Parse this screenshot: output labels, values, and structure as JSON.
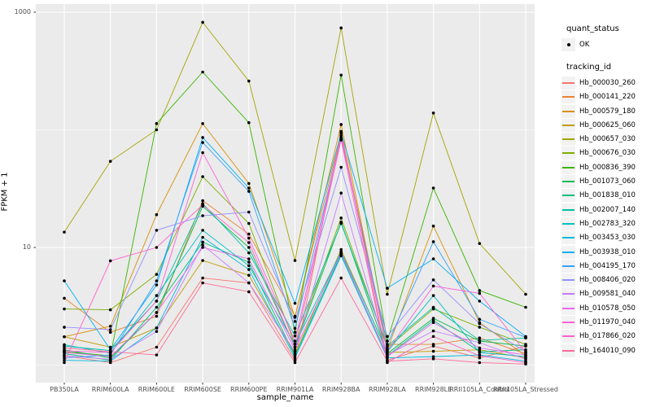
{
  "figure": {
    "y_axis": {
      "title": "FPKM + 1",
      "tick_labels": [
        "1000",
        "10"
      ],
      "tick_values": [
        1000,
        10
      ],
      "minor_grid_values": [
        100,
        1
      ]
    },
    "x_axis": {
      "title": "sample_name"
    },
    "legend": {
      "quant_status_title": "quant_status",
      "quant_status_items": [
        {
          "label": "OK",
          "symbol": "black-point"
        }
      ],
      "tracking_id_title": "tracking_id"
    },
    "colors": {
      "panel_bg": "#EBEBEB",
      "grid": "#FFFFFF",
      "legend_key_bg": "#F2F2F2",
      "tick_text": "#4D4D4D",
      "title_text": "#000000",
      "point": "#000000"
    }
  },
  "chart_data": {
    "type": "line",
    "x_type": "categorical",
    "y_scale": "log10",
    "ylim": [
      0.85,
      1200
    ],
    "xlabel": "sample_name",
    "ylabel": "FPKM + 1",
    "legend_position": "right",
    "grid": true,
    "y_major_breaks": [
      10,
      1000
    ],
    "y_minor_breaks": [
      1,
      100
    ],
    "point_marker": "black-dot",
    "categories": [
      "PB350LA",
      "RRIM600LA",
      "RRIM600LE",
      "RRIM600SE",
      "RRIM600PE",
      "RRIM901LA",
      "RRIM928BA",
      "RRIM928LA",
      "RRIM928LE",
      "RRII105LA_Control",
      "RRII105LA_Stressed"
    ],
    "series": [
      {
        "name": "Hb_000030_260",
        "color": "#F8766D",
        "values": [
          1.2,
          1.05,
          1.42,
          5.5,
          5.0,
          1.1,
          97,
          1.1,
          1.45,
          1.15,
          1.45
        ]
      },
      {
        "name": "Hb_000141_220",
        "color": "#EA8331",
        "values": [
          3.7,
          1.9,
          2.6,
          25,
          13,
          2.6,
          90,
          1.5,
          1.5,
          1.7,
          1.25
        ]
      },
      {
        "name": "Hb_000579_180",
        "color": "#D89000",
        "values": [
          1.74,
          2.14,
          19,
          113,
          35,
          2.55,
          111,
          1.35,
          15.2,
          2.3,
          1.2
        ]
      },
      {
        "name": "Hb_000625_060",
        "color": "#C09B00",
        "values": [
          1.74,
          1.42,
          2.07,
          7.75,
          5.8,
          1.24,
          9.6,
          1.28,
          1.31,
          1.35,
          1.15
        ]
      },
      {
        "name": "Hb_000657_030",
        "color": "#A3A500",
        "values": [
          13.5,
          54,
          100,
          820,
          260,
          7.75,
          735,
          4.0,
          139,
          10.8,
          4.0
        ]
      },
      {
        "name": "Hb_000676_030",
        "color": "#7CAE00",
        "values": [
          3.0,
          2.95,
          5.9,
          40,
          16,
          1.5,
          17.8,
          1.4,
          3.0,
          2.1,
          1.5
        ]
      },
      {
        "name": "Hb_000836_390",
        "color": "#39B600",
        "values": [
          1.3,
          1.2,
          113,
          310,
          115,
          1.9,
          292,
          1.6,
          32,
          4.3,
          3.1
        ]
      },
      {
        "name": "Hb_001073_060",
        "color": "#00BB4E",
        "values": [
          1.35,
          1.15,
          2.8,
          22.4,
          10,
          1.42,
          16.4,
          1.25,
          2.5,
          1.6,
          1.45
        ]
      },
      {
        "name": "Hb_001838_010",
        "color": "#00BF7D",
        "values": [
          1.25,
          1.1,
          3.1,
          11.1,
          7.5,
          1.2,
          8.8,
          1.2,
          2.4,
          1.3,
          1.35
        ]
      },
      {
        "name": "Hb_002007_140",
        "color": "#00C1A3",
        "values": [
          1.45,
          1.33,
          3.5,
          23.6,
          9.0,
          1.77,
          16,
          1.45,
          3.1,
          1.62,
          1.7
        ]
      },
      {
        "name": "Hb_002783_320",
        "color": "#00BFC4",
        "values": [
          1.49,
          1.26,
          3.9,
          14,
          7.0,
          1.51,
          9.2,
          1.3,
          3.9,
          1.28,
          1.18
        ]
      },
      {
        "name": "Hb_003453_030",
        "color": "#00BAE0",
        "values": [
          1.1,
          1.08,
          2.07,
          12.2,
          6.5,
          1.15,
          8.5,
          1.15,
          1.18,
          1.22,
          1.08
        ]
      },
      {
        "name": "Hb_003938_010",
        "color": "#00B0F6",
        "values": [
          5.2,
          1.35,
          4.8,
          86,
          32,
          3.35,
          94,
          4.5,
          8.0,
          3.5,
          1.75
        ]
      },
      {
        "name": "Hb_004195_170",
        "color": "#35A2FF",
        "values": [
          1.15,
          1.22,
          5.2,
          78,
          30,
          2.05,
          85,
          1.5,
          11.2,
          2.45,
          1.72
        ]
      },
      {
        "name": "Hb_008406_020",
        "color": "#9590FF",
        "values": [
          2.1,
          2.0,
          14,
          18.6,
          20,
          2.35,
          48,
          1.75,
          5.3,
          2.25,
          1.3
        ]
      },
      {
        "name": "Hb_009581_040",
        "color": "#C77CFF",
        "values": [
          1.2,
          1.12,
          1.93,
          10.5,
          5.0,
          1.3,
          29,
          1.22,
          1.95,
          1.55,
          1.12
        ]
      },
      {
        "name": "Hb_010578_050",
        "color": "#E76BF3",
        "values": [
          1.28,
          1.18,
          2.8,
          10,
          8.0,
          1.35,
          9.0,
          1.18,
          2.3,
          1.4,
          1.22
        ]
      },
      {
        "name": "Hb_011970_040",
        "color": "#FA62DB",
        "values": [
          1.32,
          1.28,
          3.5,
          64,
          12,
          1.6,
          88,
          1.32,
          4.7,
          4.07,
          1.28
        ]
      },
      {
        "name": "Hb_017866_020",
        "color": "#FF61CC",
        "values": [
          1.05,
          7.7,
          10,
          23,
          11,
          1.42,
          82,
          1.05,
          1.75,
          1.2,
          1.05
        ]
      },
      {
        "name": "Hb_164010_090",
        "color": "#FF6A98",
        "values": [
          1.4,
          1.3,
          1.22,
          5.0,
          4.2,
          1.05,
          5.5,
          1.08,
          1.13,
          1.05,
          1.02
        ]
      }
    ]
  }
}
